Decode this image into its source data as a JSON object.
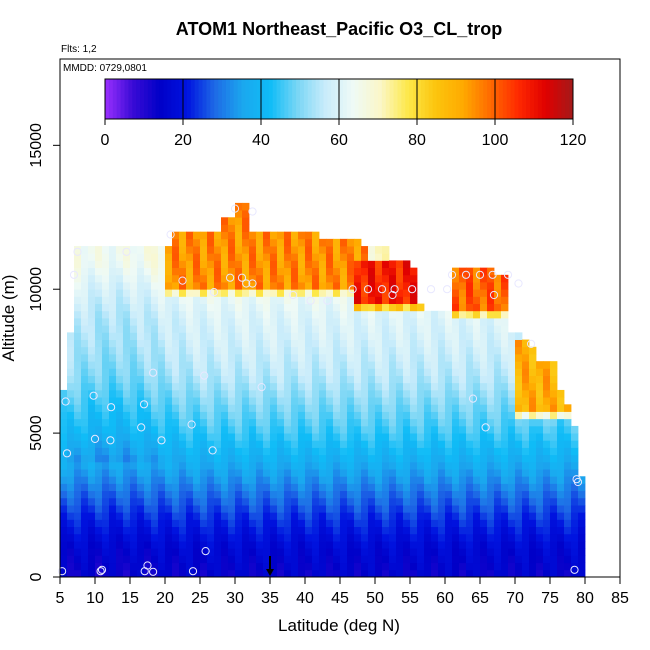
{
  "chart_data": {
    "type": "heatmap",
    "title": "ATOM1 Northeast_Pacific O3_CL_trop",
    "flights_label": "Flts: 1,2",
    "date_label": "MMDD: 0729,0801",
    "xlabel": "Latitude (deg N)",
    "ylabel": "Altitude (m)",
    "xlim": [
      5,
      85
    ],
    "ylim": [
      0,
      18000
    ],
    "x_ticks": [
      5,
      10,
      15,
      20,
      25,
      30,
      35,
      40,
      45,
      50,
      55,
      60,
      65,
      70,
      75,
      80,
      85
    ],
    "y_ticks": [
      0,
      5000,
      10000,
      15000
    ],
    "colorbar": {
      "min": 0,
      "max": 120,
      "ticks": [
        0,
        20,
        40,
        60,
        80,
        100,
        120
      ],
      "colors": [
        "#9b30ff",
        "#3a0bd6",
        "#0000c8",
        "#0014e0",
        "#1e6be6",
        "#1ba7ee",
        "#0fbcf7",
        "#7ad6f5",
        "#c9ecfb",
        "#eefaf6",
        "#fbf7c8",
        "#fde84a",
        "#fcc50e",
        "#ffaa00",
        "#ff6a00",
        "#ff2a00",
        "#e00000",
        "#a41a1a"
      ]
    },
    "marker": {
      "latitude": 35,
      "altitude": 0
    },
    "lat_bins": [
      5,
      79
    ],
    "alt_bin_m": 250,
    "profile": [
      {
        "altitude": 0,
        "value": 14
      },
      {
        "altitude": 1000,
        "value": 17
      },
      {
        "altitude": 2000,
        "value": 23
      },
      {
        "altitude": 3000,
        "value": 30
      },
      {
        "altitude": 4000,
        "value": 38
      },
      {
        "altitude": 5000,
        "value": 45
      },
      {
        "altitude": 6000,
        "value": 50
      },
      {
        "altitude": 7000,
        "value": 55
      },
      {
        "altitude": 8000,
        "value": 58
      },
      {
        "altitude": 9000,
        "value": 60
      },
      {
        "altitude": 10000,
        "value": 64
      },
      {
        "altitude": 11000,
        "value": 70
      }
    ],
    "column_tops": [
      {
        "lat": 5,
        "top": 6500
      },
      {
        "lat": 6,
        "top": 8500
      },
      {
        "lat": 7,
        "top": 11500
      },
      {
        "lat": 20,
        "top": 11500
      },
      {
        "lat": 21,
        "top": 12000
      },
      {
        "lat": 28,
        "top": 12500
      },
      {
        "lat": 30,
        "top": 13000
      },
      {
        "lat": 32,
        "top": 12000
      },
      {
        "lat": 38,
        "top": 12000
      },
      {
        "lat": 42,
        "top": 11750
      },
      {
        "lat": 47,
        "top": 11750
      },
      {
        "lat": 48,
        "top": 11500
      },
      {
        "lat": 52,
        "top": 11000
      },
      {
        "lat": 55,
        "top": 10750
      },
      {
        "lat": 56,
        "top": 9500
      },
      {
        "lat": 57,
        "top": 9250
      },
      {
        "lat": 60,
        "top": 9250
      },
      {
        "lat": 61,
        "top": 10750
      },
      {
        "lat": 64,
        "top": 10750
      },
      {
        "lat": 67,
        "top": 10500
      },
      {
        "lat": 69,
        "top": 8500
      },
      {
        "lat": 71,
        "top": 8250
      },
      {
        "lat": 72,
        "top": 8000
      },
      {
        "lat": 73,
        "top": 7500
      },
      {
        "lat": 76,
        "top": 6500
      },
      {
        "lat": 77,
        "top": 6000
      },
      {
        "lat": 78,
        "top": 5250
      },
      {
        "lat": 79,
        "top": 3500
      }
    ],
    "high_ozone_regions": [
      {
        "lat_range": [
          20,
          48
        ],
        "alt_range": [
          9500,
          13000
        ],
        "value": 95
      },
      {
        "lat_range": [
          47,
          56
        ],
        "alt_range": [
          9000,
          11000
        ],
        "value": 108
      },
      {
        "lat_range": [
          61,
          69
        ],
        "alt_range": [
          8750,
          10750
        ],
        "value": 100
      },
      {
        "lat_range": [
          70,
          78
        ],
        "alt_range": [
          5250,
          8250
        ],
        "value": 90
      }
    ],
    "samples": [
      {
        "lat": 5.3,
        "alt": 200
      },
      {
        "lat": 10.8,
        "alt": 200
      },
      {
        "lat": 11.0,
        "alt": 250
      },
      {
        "lat": 17.1,
        "alt": 200
      },
      {
        "lat": 17.5,
        "alt": 400
      },
      {
        "lat": 18.3,
        "alt": 180
      },
      {
        "lat": 24.0,
        "alt": 200
      },
      {
        "lat": 25.8,
        "alt": 900
      },
      {
        "lat": 78.5,
        "alt": 250
      },
      {
        "lat": 6.0,
        "alt": 4300
      },
      {
        "lat": 10.0,
        "alt": 4800
      },
      {
        "lat": 12.2,
        "alt": 4750
      },
      {
        "lat": 19.5,
        "alt": 4750
      },
      {
        "lat": 26.8,
        "alt": 4400
      },
      {
        "lat": 16.6,
        "alt": 5200
      },
      {
        "lat": 23.8,
        "alt": 5300
      },
      {
        "lat": 5.8,
        "alt": 6100
      },
      {
        "lat": 9.8,
        "alt": 6300
      },
      {
        "lat": 12.3,
        "alt": 5900
      },
      {
        "lat": 17.0,
        "alt": 6000
      },
      {
        "lat": 25.6,
        "alt": 7000
      },
      {
        "lat": 33.8,
        "alt": 6600
      },
      {
        "lat": 18.3,
        "alt": 7100
      },
      {
        "lat": 65.8,
        "alt": 5200
      },
      {
        "lat": 64.0,
        "alt": 6200
      },
      {
        "lat": 72.3,
        "alt": 8100
      },
      {
        "lat": 78.8,
        "alt": 3400
      },
      {
        "lat": 79.0,
        "alt": 3300
      },
      {
        "lat": 7.0,
        "alt": 10500
      },
      {
        "lat": 7.5,
        "alt": 11300
      },
      {
        "lat": 14.5,
        "alt": 11300
      },
      {
        "lat": 22.5,
        "alt": 10300
      },
      {
        "lat": 27.0,
        "alt": 9900
      },
      {
        "lat": 29.3,
        "alt": 10400
      },
      {
        "lat": 31.0,
        "alt": 10400
      },
      {
        "lat": 31.6,
        "alt": 10200
      },
      {
        "lat": 32.5,
        "alt": 10200
      },
      {
        "lat": 30.0,
        "alt": 12800
      },
      {
        "lat": 32.5,
        "alt": 12700
      },
      {
        "lat": 20.8,
        "alt": 11900
      },
      {
        "lat": 38.3,
        "alt": 9800
      },
      {
        "lat": 40.8,
        "alt": 9600
      },
      {
        "lat": 43.2,
        "alt": 9600
      },
      {
        "lat": 46.8,
        "alt": 10000
      },
      {
        "lat": 49.0,
        "alt": 10000
      },
      {
        "lat": 51.0,
        "alt": 10000
      },
      {
        "lat": 52.8,
        "alt": 10000
      },
      {
        "lat": 55.3,
        "alt": 10000
      },
      {
        "lat": 58.0,
        "alt": 10000
      },
      {
        "lat": 60.3,
        "alt": 10000
      },
      {
        "lat": 61.0,
        "alt": 10500
      },
      {
        "lat": 63.0,
        "alt": 10500
      },
      {
        "lat": 65.0,
        "alt": 10500
      },
      {
        "lat": 66.8,
        "alt": 10500
      },
      {
        "lat": 69.0,
        "alt": 10500
      },
      {
        "lat": 70.5,
        "alt": 10200
      },
      {
        "lat": 67.0,
        "alt": 9800
      },
      {
        "lat": 52.5,
        "alt": 9800
      }
    ]
  }
}
